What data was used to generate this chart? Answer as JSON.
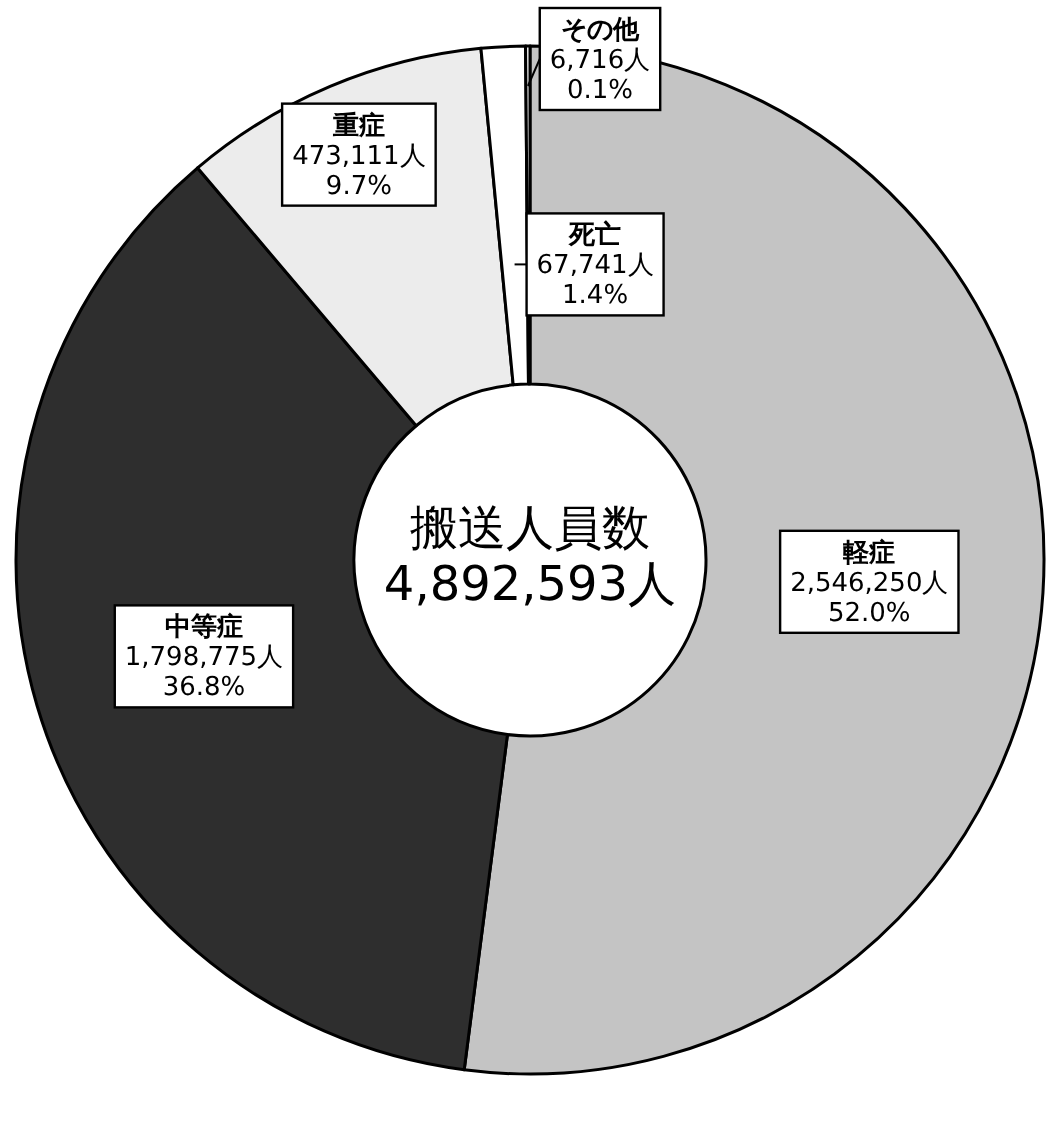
{
  "chart_data": {
    "type": "donut",
    "title": "搬送人員数",
    "subtitle": "4,892,593人",
    "categories": [
      "軽症",
      "中等症",
      "重症",
      "死亡",
      "その他"
    ],
    "values": [
      2546250,
      1798775,
      473111,
      67741,
      6716
    ],
    "value_labels": [
      "2,546,250人\n52.0%",
      "1,798,775人\n36.8%",
      "473,111人\n9.7%",
      "67,741人\n1.4%",
      "6,716人\n0.1%"
    ],
    "colors": [
      "#c4c4c4",
      "#2e2e2e",
      "#ececec",
      "#ffffff",
      "#ffffff"
    ]
  }
}
